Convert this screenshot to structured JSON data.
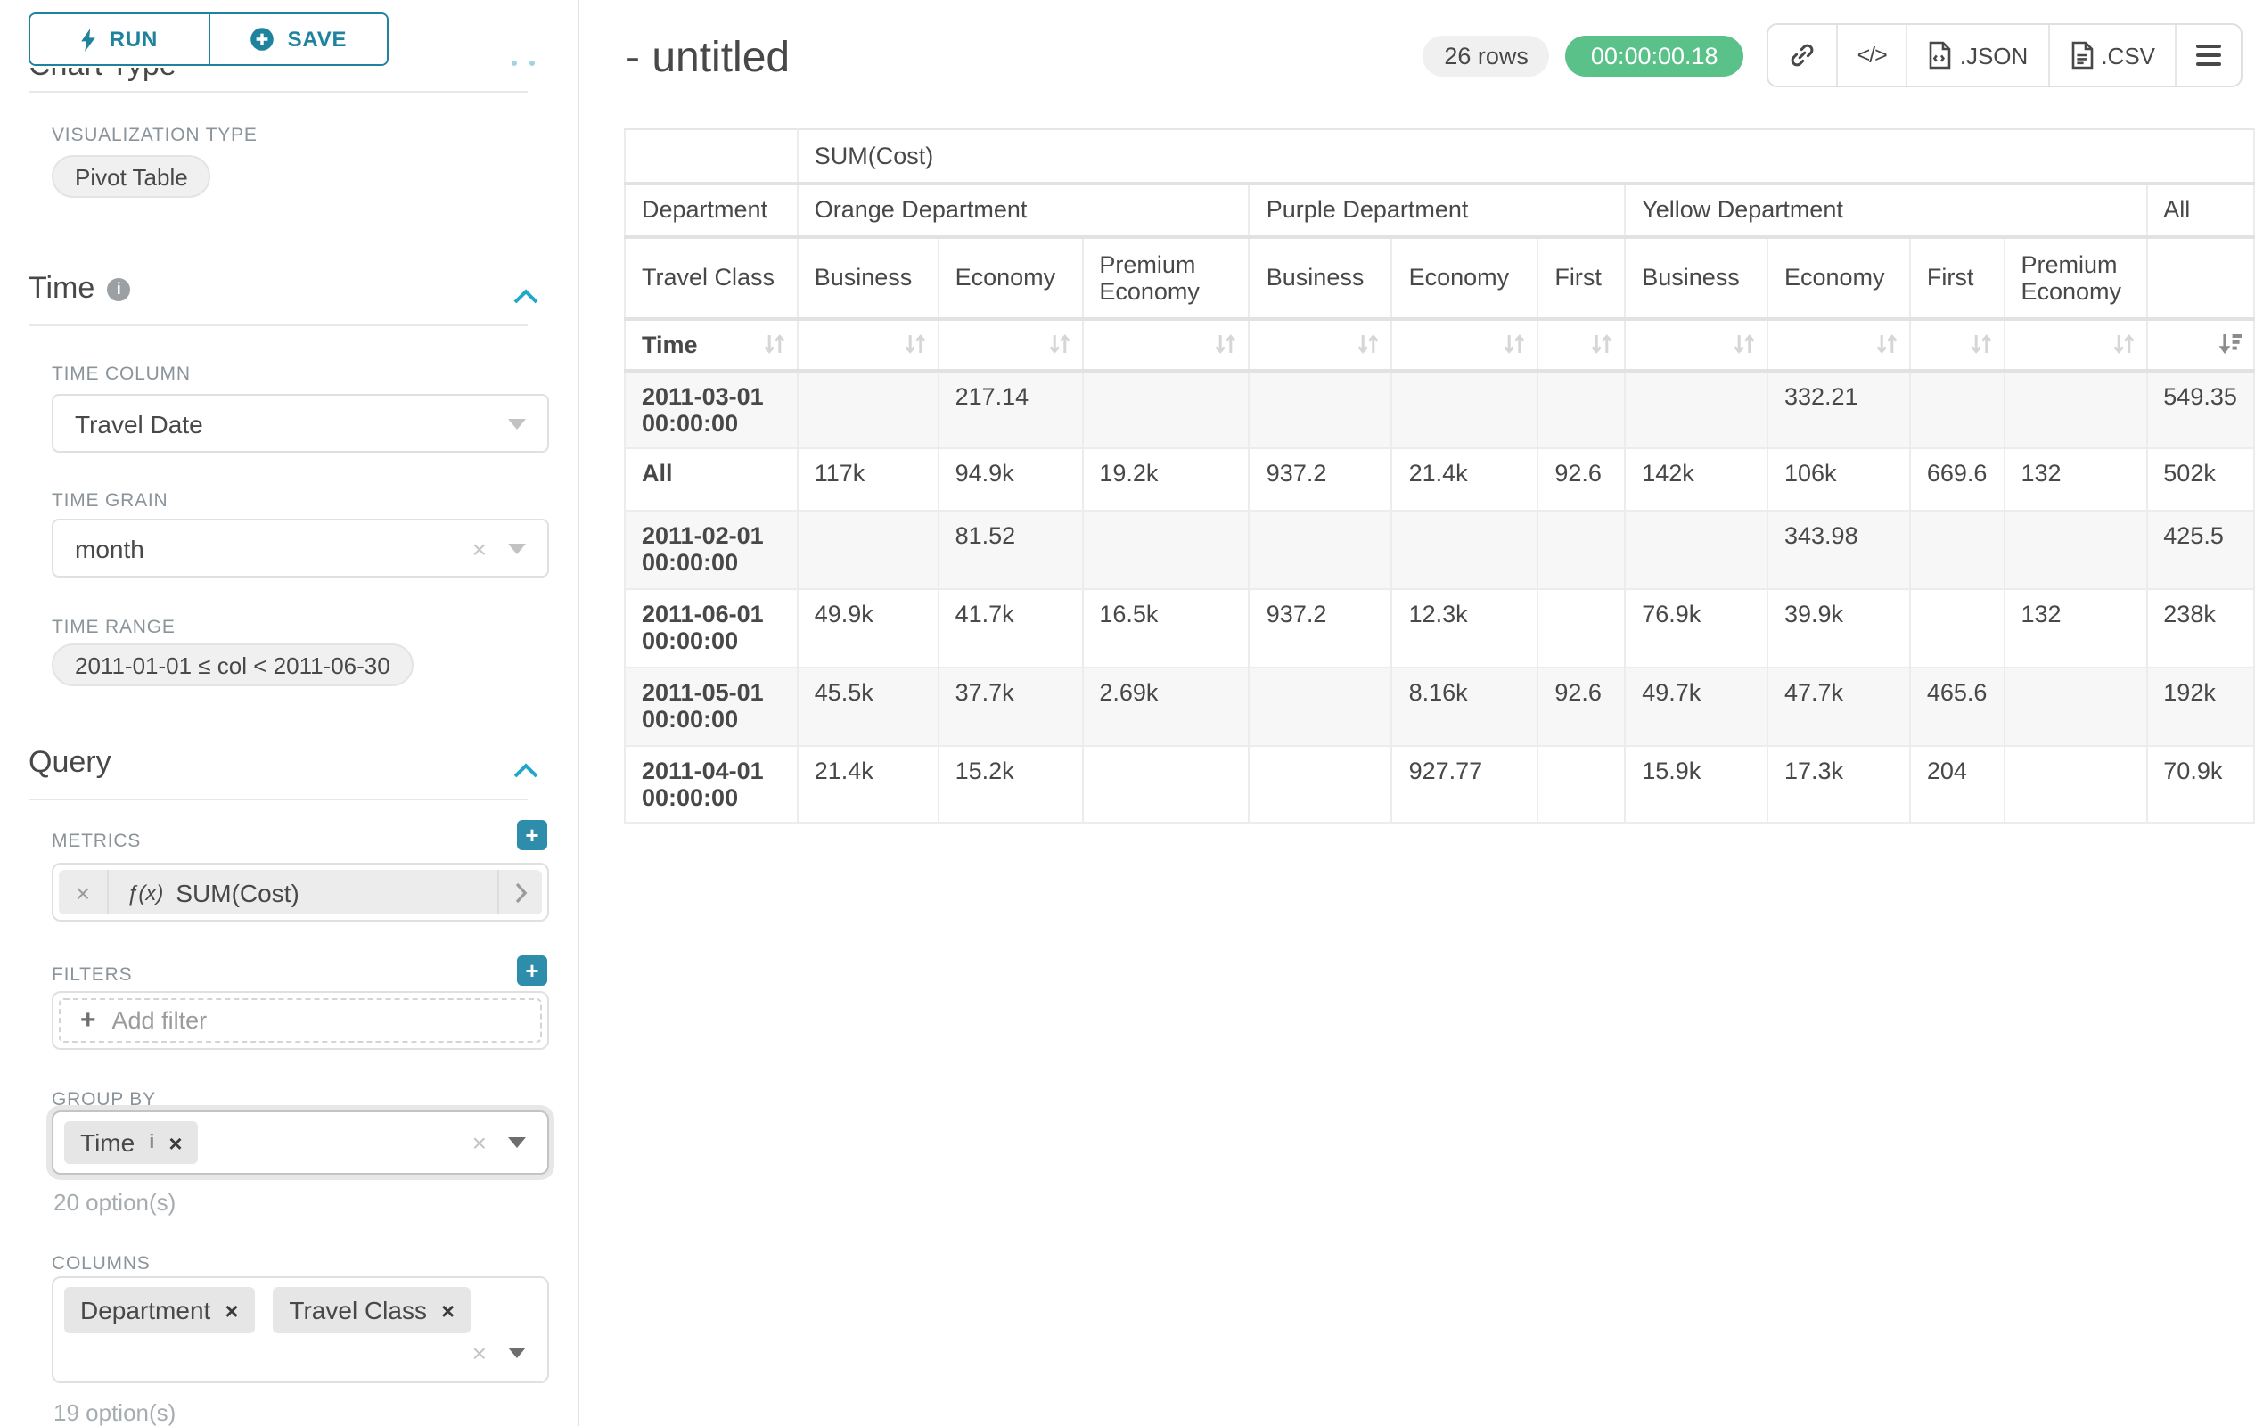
{
  "toolbar": {
    "run": "RUN",
    "save": "SAVE"
  },
  "panel": {
    "chart_type_heading": "Chart Type",
    "viz_type_label": "VISUALIZATION TYPE",
    "viz_type_value": "Pivot Table",
    "time": {
      "title": "Time",
      "time_column_label": "TIME COLUMN",
      "time_column_value": "Travel Date",
      "time_grain_label": "TIME GRAIN",
      "time_grain_value": "month",
      "time_range_label": "TIME RANGE",
      "time_range_value": "2011-01-01 ≤ col < 2011-06-30"
    },
    "query": {
      "title": "Query",
      "metrics_label": "METRICS",
      "metric_fx": "ƒ(x)",
      "metric_value": "SUM(Cost)",
      "filters_label": "FILTERS",
      "add_filter": "Add filter",
      "group_by_label": "GROUP BY",
      "group_by_tags": [
        "Time"
      ],
      "group_by_options": "20 option(s)",
      "columns_label": "COLUMNS",
      "columns_tags": [
        "Department",
        "Travel Class"
      ],
      "columns_options": "19 option(s)"
    }
  },
  "header": {
    "title": "- untitled",
    "rows_badge": "26 rows",
    "timer": "00:00:00.18",
    "code_glyph": "</>",
    "export_json": ".JSON",
    "export_csv": ".CSV"
  },
  "table": {
    "metric_header": "SUM(Cost)",
    "row_dimension": "Department",
    "col_dimension": "Travel Class",
    "row_axis": "Time",
    "groups": [
      {
        "label": "Orange Department",
        "columns": [
          "Business",
          "Economy",
          "Premium Economy"
        ]
      },
      {
        "label": "Purple Department",
        "columns": [
          "Business",
          "Economy",
          "First"
        ]
      },
      {
        "label": "Yellow Department",
        "columns": [
          "Business",
          "Economy",
          "First",
          "Premium Economy"
        ]
      },
      {
        "label": "All",
        "columns": [
          ""
        ]
      }
    ],
    "rows": [
      {
        "label": "2011-03-01 00:00:00",
        "values": [
          "",
          "217.14",
          "",
          "",
          "",
          "",
          "",
          "332.21",
          "",
          "",
          "549.35"
        ]
      },
      {
        "label": "All",
        "values": [
          "117k",
          "94.9k",
          "19.2k",
          "937.2",
          "21.4k",
          "92.6",
          "142k",
          "106k",
          "669.6",
          "132",
          "502k"
        ]
      },
      {
        "label": "2011-02-01 00:00:00",
        "values": [
          "",
          "81.52",
          "",
          "",
          "",
          "",
          "",
          "343.98",
          "",
          "",
          "425.5"
        ]
      },
      {
        "label": "2011-06-01 00:00:00",
        "values": [
          "49.9k",
          "41.7k",
          "16.5k",
          "937.2",
          "12.3k",
          "",
          "76.9k",
          "39.9k",
          "",
          "132",
          "238k"
        ]
      },
      {
        "label": "2011-05-01 00:00:00",
        "values": [
          "45.5k",
          "37.7k",
          "2.69k",
          "",
          "8.16k",
          "92.6",
          "49.7k",
          "47.7k",
          "465.6",
          "",
          "192k"
        ]
      },
      {
        "label": "2011-04-01 00:00:00",
        "values": [
          "21.4k",
          "15.2k",
          "",
          "",
          "927.77",
          "",
          "15.9k",
          "17.3k",
          "204",
          "",
          "70.9k"
        ]
      }
    ]
  }
}
